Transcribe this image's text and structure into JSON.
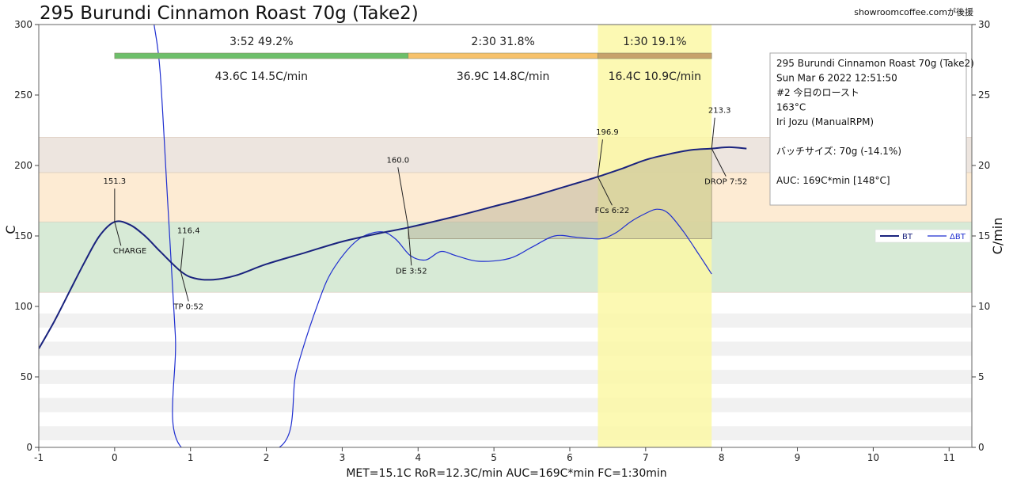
{
  "chart_data": {
    "type": "line",
    "title": "295 Burundi Cinnamon Roast 70g (Take2)",
    "credit": "showroomcoffee.comが後援",
    "xlabel": "",
    "ylabel": "C",
    "y2label": "C/min",
    "xlim": [
      -1,
      11.3
    ],
    "ylim": [
      0,
      300
    ],
    "y2lim": [
      0,
      30
    ],
    "x_ticks": [
      -1,
      0,
      1,
      2,
      3,
      4,
      5,
      6,
      7,
      8,
      9,
      10,
      11
    ],
    "y_ticks": [
      0,
      50,
      100,
      150,
      200,
      250,
      300
    ],
    "y2_ticks": [
      0,
      5,
      10,
      15,
      20,
      25,
      30
    ],
    "footer": "MET=15.1C   RoR=12.3C/min   AUC=169C*min   FC=1:30min",
    "bands": [
      {
        "from": 110,
        "to": 160,
        "color": "#d7ead6"
      },
      {
        "from": 160,
        "to": 195,
        "color": "#fdebd3"
      },
      {
        "from": 195,
        "to": 220,
        "color": "#ede5df"
      }
    ],
    "stripes": [
      [
        5,
        15
      ],
      [
        25,
        35
      ],
      [
        45,
        55
      ],
      [
        65,
        75
      ],
      [
        85,
        95
      ]
    ],
    "fc_highlight": {
      "from": 6.37,
      "to": 7.87,
      "color": "#fbf8a6"
    },
    "auc_region": {
      "from": 3.87,
      "to": 7.87,
      "base": 148,
      "color": "#b3ad92"
    },
    "phases": [
      {
        "from": 0,
        "to": 3.87,
        "color": "#6dbf6a",
        "top": "3:52  49.2%",
        "bottom": "43.6C  14.5C/min"
      },
      {
        "from": 3.87,
        "to": 6.37,
        "color": "#f7c26b",
        "top": "2:30  31.8%",
        "bottom": "36.9C  14.8C/min"
      },
      {
        "from": 6.37,
        "to": 7.87,
        "color": "#c7a26b",
        "top": "1:30  19.1%",
        "bottom": "16.4C  10.9C/min"
      }
    ],
    "series": [
      {
        "name": "BT",
        "axis": "left",
        "color": "#1a237e",
        "points": [
          [
            -1,
            70
          ],
          [
            -0.8,
            89
          ],
          [
            -0.6,
            110
          ],
          [
            -0.4,
            131
          ],
          [
            -0.2,
            150
          ],
          [
            0,
            160
          ],
          [
            0.2,
            158
          ],
          [
            0.4,
            150
          ],
          [
            0.6,
            139
          ],
          [
            0.87,
            125
          ],
          [
            1.05,
            120
          ],
          [
            1.3,
            119
          ],
          [
            1.6,
            122
          ],
          [
            2,
            130
          ],
          [
            2.5,
            138
          ],
          [
            3,
            146
          ],
          [
            3.5,
            152
          ],
          [
            3.87,
            156
          ],
          [
            4.5,
            164
          ],
          [
            5,
            171
          ],
          [
            5.5,
            178
          ],
          [
            6,
            186
          ],
          [
            6.37,
            192
          ],
          [
            6.7,
            198
          ],
          [
            7,
            204
          ],
          [
            7.3,
            208
          ],
          [
            7.6,
            211
          ],
          [
            7.87,
            212
          ],
          [
            8.1,
            213
          ],
          [
            8.33,
            212
          ]
        ]
      },
      {
        "name": "ΔBT",
        "axis": "right",
        "color": "#1f2fd0",
        "points": [
          [
            0.52,
            30
          ],
          [
            0.6,
            26.6
          ],
          [
            0.7,
            17.3
          ],
          [
            0.8,
            8
          ],
          [
            0.88,
            0
          ],
          [
            2.17,
            0
          ],
          [
            2.4,
            5.5
          ],
          [
            2.7,
            10.5
          ],
          [
            2.9,
            12.8
          ],
          [
            3.2,
            14.7
          ],
          [
            3.5,
            15.3
          ],
          [
            3.7,
            14.8
          ],
          [
            3.9,
            13.6
          ],
          [
            4.1,
            13.3
          ],
          [
            4.3,
            13.9
          ],
          [
            4.5,
            13.6
          ],
          [
            4.8,
            13.2
          ],
          [
            5.2,
            13.4
          ],
          [
            5.5,
            14.2
          ],
          [
            5.8,
            15
          ],
          [
            6.1,
            14.9
          ],
          [
            6.4,
            14.8
          ],
          [
            6.6,
            15.2
          ],
          [
            6.8,
            16
          ],
          [
            7,
            16.6
          ],
          [
            7.15,
            16.9
          ],
          [
            7.3,
            16.6
          ],
          [
            7.5,
            15.3
          ],
          [
            7.7,
            13.7
          ],
          [
            7.87,
            12.3
          ]
        ]
      }
    ],
    "events": [
      {
        "name": "CHARGE",
        "x": 0,
        "y": 160,
        "value": "151.3",
        "label": "CHARGE"
      },
      {
        "name": "TP",
        "x": 0.87,
        "y": 125,
        "value": "116.4",
        "label": "TP 0:52"
      },
      {
        "name": "DE",
        "x": 3.87,
        "y": 156,
        "value": "160.0",
        "label": "DE 3:52"
      },
      {
        "name": "FCs",
        "x": 6.37,
        "y": 192,
        "value": "196.9",
        "label": "FCs 6:22"
      },
      {
        "name": "DROP",
        "x": 7.87,
        "y": 212,
        "value": "213.3",
        "label": "DROP 7:52"
      }
    ],
    "info_box": [
      "295 Burundi Cinnamon Roast 70g (Take2)",
      "Sun Mar 6 2022 12:51:50",
      "#2 今日のロースト",
      "163°C",
      "Iri Jozu (ManualRPM)",
      "",
      "バッチサイズ: 70g (-14.1%)",
      "",
      "AUC: 169C*min [148°C]"
    ],
    "legend": {
      "placement": "right",
      "entries": [
        "BT",
        "ΔBT"
      ]
    }
  }
}
